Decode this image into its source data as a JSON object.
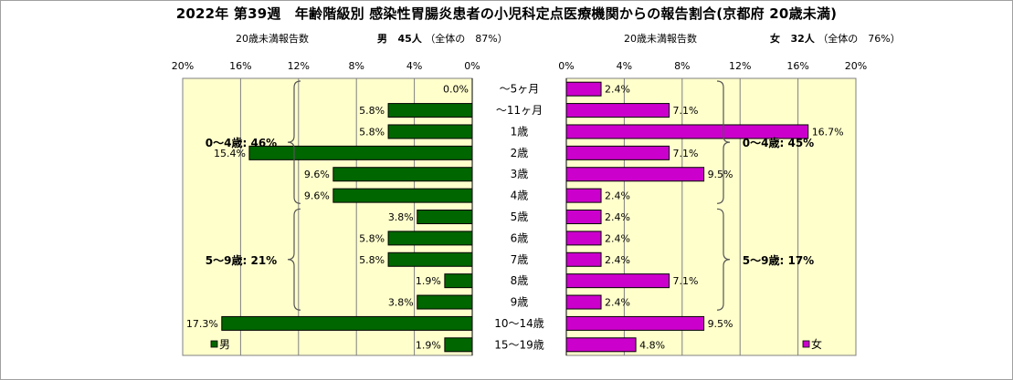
{
  "title": "2022年 第39週　年齢階級別 感染性胃腸炎患者の小児科定点医療機関からの報告割合(京都府 20歳未満)",
  "left_header": {
    "label": "20歳未満報告数",
    "sex": "男",
    "count": "45人",
    "share": "（全体の　87%）"
  },
  "right_header": {
    "label": "20歳未満報告数",
    "sex": "女",
    "count": "32人",
    "share": "（全体の　76%）"
  },
  "chart_data": {
    "type": "bar",
    "orientation": "horizontal-pyramid",
    "categories": [
      "～5ヶ月",
      "～11ヶ月",
      "1歳",
      "2歳",
      "3歳",
      "4歳",
      "5歳",
      "6歳",
      "7歳",
      "8歳",
      "9歳",
      "10～14歳",
      "15～19歳"
    ],
    "series": [
      {
        "name": "男",
        "color": "#006600",
        "values": [
          0.0,
          5.8,
          5.8,
          15.4,
          9.6,
          9.6,
          3.8,
          5.8,
          5.8,
          1.9,
          3.8,
          17.3,
          1.9
        ],
        "labels": [
          "0.0%",
          "5.8%",
          "5.8%",
          "15.4%",
          "9.6%",
          "9.6%",
          "3.8%",
          "5.8%",
          "5.8%",
          "1.9%",
          "3.8%",
          "17.3%",
          "1.9%"
        ]
      },
      {
        "name": "女",
        "color": "#cc00cc",
        "values": [
          2.4,
          7.1,
          16.7,
          7.1,
          9.5,
          2.4,
          2.4,
          2.4,
          2.4,
          7.1,
          2.4,
          9.5,
          4.8
        ],
        "labels": [
          "2.4%",
          "7.1%",
          "16.7%",
          "7.1%",
          "9.5%",
          "2.4%",
          "2.4%",
          "2.4%",
          "2.4%",
          "7.1%",
          "2.4%",
          "9.5%",
          "4.8%"
        ]
      }
    ],
    "xlim": [
      0,
      20
    ],
    "ticks": [
      0,
      4,
      8,
      12,
      16,
      20
    ],
    "tick_labels": [
      "0%",
      "4%",
      "8%",
      "12%",
      "16%",
      "20%"
    ],
    "plot_background": "#ffffcc",
    "grid": true,
    "annotations": [
      {
        "series": "男",
        "text": "0～4歳: 46%",
        "from": 0,
        "to": 5
      },
      {
        "series": "男",
        "text": "5～9歳: 21%",
        "from": 6,
        "to": 10
      },
      {
        "series": "女",
        "text": "0～4歳: 45%",
        "from": 0,
        "to": 5
      },
      {
        "series": "女",
        "text": "5～9歳: 17%",
        "from": 6,
        "to": 10
      }
    ]
  }
}
